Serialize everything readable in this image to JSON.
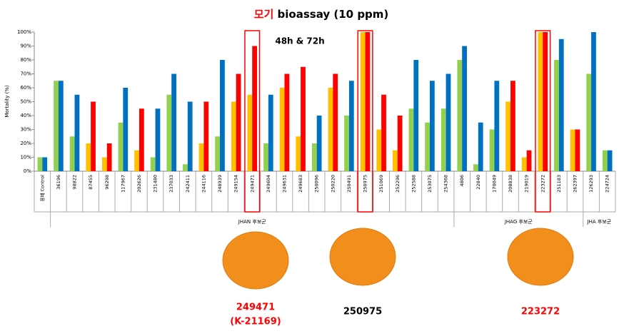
{
  "chart_data": {
    "type": "bar",
    "title": {
      "highlight": "모기",
      "text": "bioassay (10 ppm)"
    },
    "annotation": "48h & 72h",
    "y_label": "Mortality (%)",
    "categories": [
      "용매 Control",
      "36196",
      "98822",
      "87455",
      "96298",
      "117967",
      "202626",
      "231480",
      "237033",
      "242411",
      "244116",
      "248939",
      "249154",
      "249471",
      "249604",
      "249631",
      "249683",
      "250096",
      "250220",
      "250491",
      "250975",
      "251069",
      "252296",
      "252588",
      "253075",
      "254368",
      "4806",
      "22840",
      "170049",
      "208838",
      "219019",
      "223272",
      "251183",
      "262397",
      "126293",
      "224724"
    ],
    "series": [
      {
        "color": "#92d050",
        "values": [
          10,
          65,
          25,
          null,
          null,
          35,
          null,
          10,
          55,
          5,
          null,
          25,
          null,
          null,
          20,
          null,
          null,
          20,
          null,
          40,
          null,
          null,
          null,
          45,
          35,
          45,
          80,
          5,
          30,
          null,
          null,
          null,
          80,
          null,
          70,
          15
        ]
      },
      {
        "color": "#ffc000",
        "values": [
          null,
          null,
          null,
          20,
          10,
          null,
          15,
          null,
          null,
          null,
          20,
          null,
          50,
          55,
          null,
          60,
          25,
          null,
          60,
          null,
          100,
          30,
          15,
          null,
          null,
          null,
          null,
          null,
          null,
          50,
          10,
          100,
          null,
          30,
          null,
          null
        ]
      },
      {
        "color": "#ff0000",
        "values": [
          null,
          null,
          null,
          50,
          20,
          null,
          45,
          null,
          null,
          null,
          50,
          null,
          70,
          90,
          null,
          70,
          75,
          null,
          70,
          null,
          100,
          55,
          40,
          null,
          null,
          null,
          null,
          null,
          null,
          65,
          15,
          100,
          null,
          30,
          null,
          null
        ]
      },
      {
        "color": "#0070c0",
        "values": [
          10,
          65,
          55,
          null,
          null,
          60,
          null,
          45,
          70,
          50,
          null,
          80,
          null,
          null,
          55,
          null,
          null,
          40,
          null,
          65,
          null,
          null,
          null,
          80,
          65,
          70,
          90,
          35,
          65,
          null,
          null,
          null,
          95,
          null,
          100,
          15
        ]
      }
    ],
    "ylim": [
      0,
      100
    ],
    "yticks": [
      {
        "value": 0,
        "label": "0%"
      },
      {
        "value": 10,
        "label": "10%"
      },
      {
        "value": 20,
        "label": "20%"
      },
      {
        "value": 30,
        "label": "30%"
      },
      {
        "value": 40,
        "label": "40%"
      },
      {
        "value": 50,
        "label": "50%"
      },
      {
        "value": 60,
        "label": "60%"
      },
      {
        "value": 70,
        "label": "70%"
      },
      {
        "value": 80,
        "label": "80%"
      },
      {
        "value": 90,
        "label": "90%"
      },
      {
        "value": 100,
        "label": "100%"
      }
    ],
    "grid": false,
    "highlight_color": "#ff0000",
    "highlighted": [
      13,
      20,
      31
    ],
    "groups": [
      {
        "label": "JHAN 후보군",
        "from": 1,
        "to": 25
      },
      {
        "label": "JHAG 후보군",
        "from": 26,
        "to": 33
      },
      {
        "label": "JHA 후보군",
        "from": 34,
        "to": 35
      }
    ],
    "compounds": [
      {
        "name": "249471",
        "code": "(K-21169)",
        "color": "#ff0000"
      },
      {
        "name": "250975",
        "color": "#000000"
      },
      {
        "name": "223272",
        "color": "#ff0000"
      }
    ]
  }
}
